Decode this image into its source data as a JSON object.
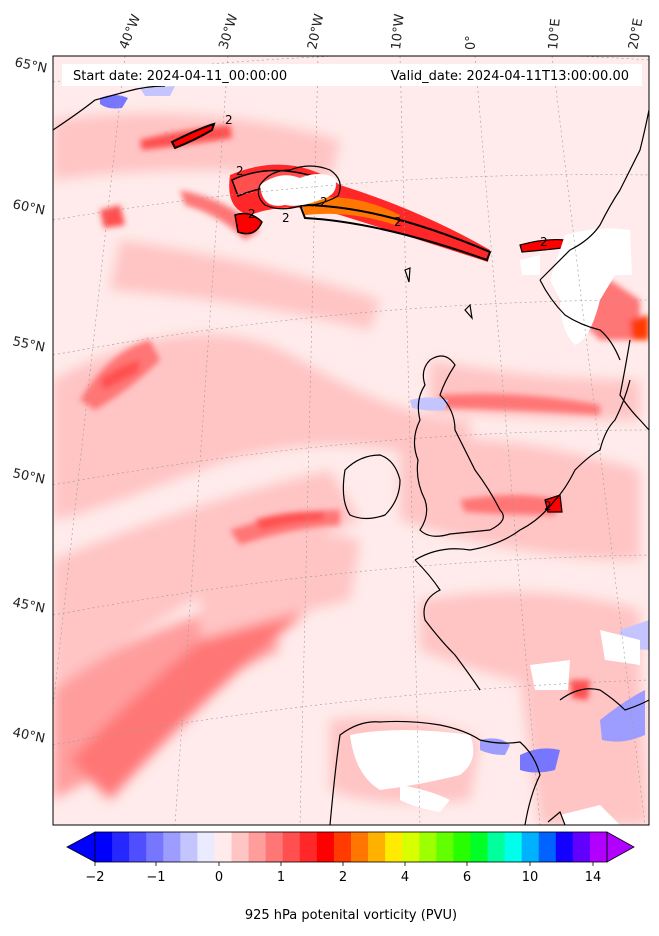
{
  "header": {
    "start_date": "Start date: 2024-04-11_00:00:00",
    "valid_date": "Valid_date: 2024-04-11T13:00:00.00"
  },
  "lon_labels": [
    "40°W",
    "30°W",
    "20°W",
    "10°W",
    "0°",
    "10°E",
    "20°E"
  ],
  "lat_labels": [
    "65°N",
    "60°N",
    "55°N",
    "50°N",
    "45°N",
    "40°N"
  ],
  "colorbar": {
    "label": "925 hPa potenital vorticity (PVU)",
    "tick_labels": [
      "−2",
      "−1",
      "0",
      "1",
      "2",
      "4",
      "6",
      "10",
      "14"
    ],
    "colors": [
      "#0000ff",
      "#2727ff",
      "#4f4fff",
      "#7676ff",
      "#9d9dff",
      "#c4c4ff",
      "#ebebff",
      "#ffebeb",
      "#ffc4c4",
      "#ff9d9d",
      "#ff7676",
      "#ff4f4f",
      "#ff2727",
      "#ff0000",
      "#ff3b00",
      "#ff7600",
      "#ffb100",
      "#ffeb00",
      "#d8ff00",
      "#9dff00",
      "#62ff00",
      "#27ff00",
      "#00ff27",
      "#00ff9d",
      "#00ffeb",
      "#00b1ff",
      "#0062ff",
      "#1300ff",
      "#6200ff",
      "#b100ff"
    ]
  },
  "contour_labels": [
    "2",
    "2",
    "2",
    "2",
    "2",
    "2",
    "2",
    "2"
  ]
}
